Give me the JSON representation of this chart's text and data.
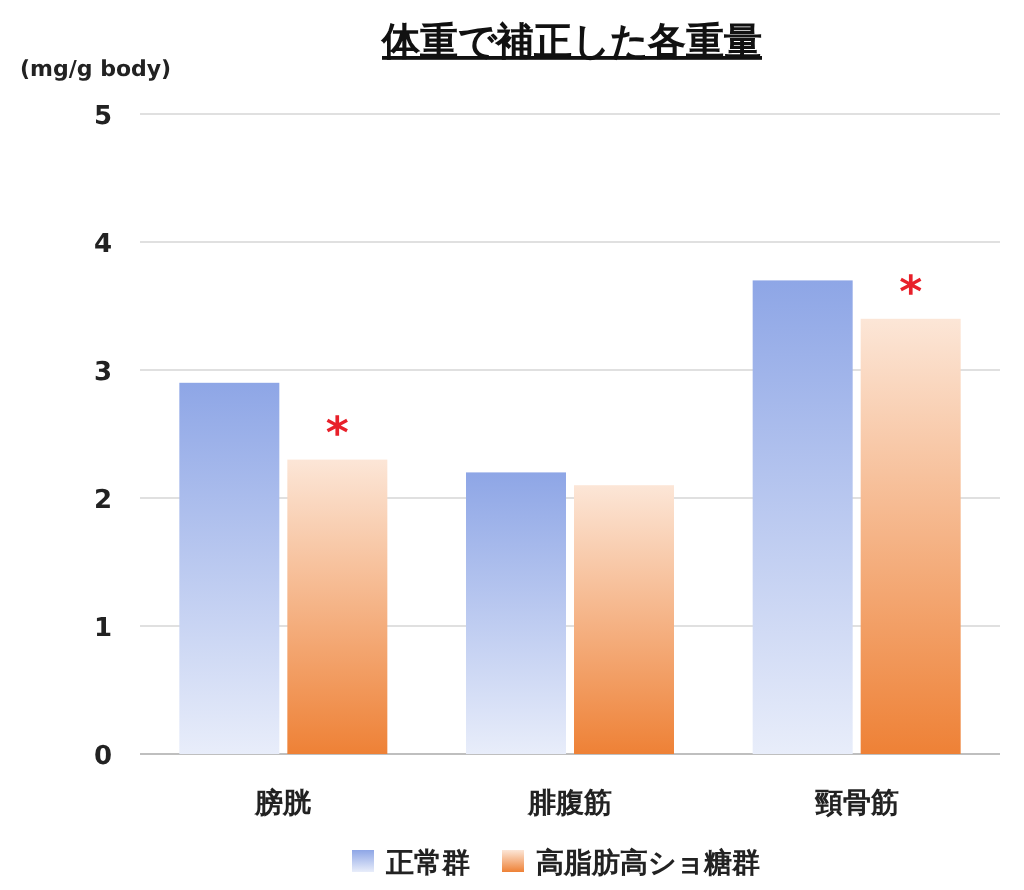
{
  "chart_data": {
    "type": "bar",
    "title": "体重で補正した各重量",
    "ylabel": "(mg/g body)",
    "categories": [
      "膀胱",
      "腓腹筋",
      "頸骨筋"
    ],
    "series": [
      {
        "name": "正常群",
        "color": "#8ea6e6",
        "values": [
          2.9,
          2.2,
          3.7
        ]
      },
      {
        "name": "高脂肪高ショ糖群",
        "color": "#ee8136",
        "values": [
          2.3,
          2.1,
          3.4
        ]
      }
    ],
    "ylim": [
      0,
      5
    ],
    "yticks": [
      0,
      1,
      2,
      3,
      4,
      5
    ],
    "grid": "y",
    "legend": "bottom",
    "annotations": [
      {
        "text": "*",
        "x": "膀胱",
        "y": 2.3
      },
      {
        "text": "*",
        "x": "頸骨筋",
        "y": 3.4
      }
    ]
  }
}
